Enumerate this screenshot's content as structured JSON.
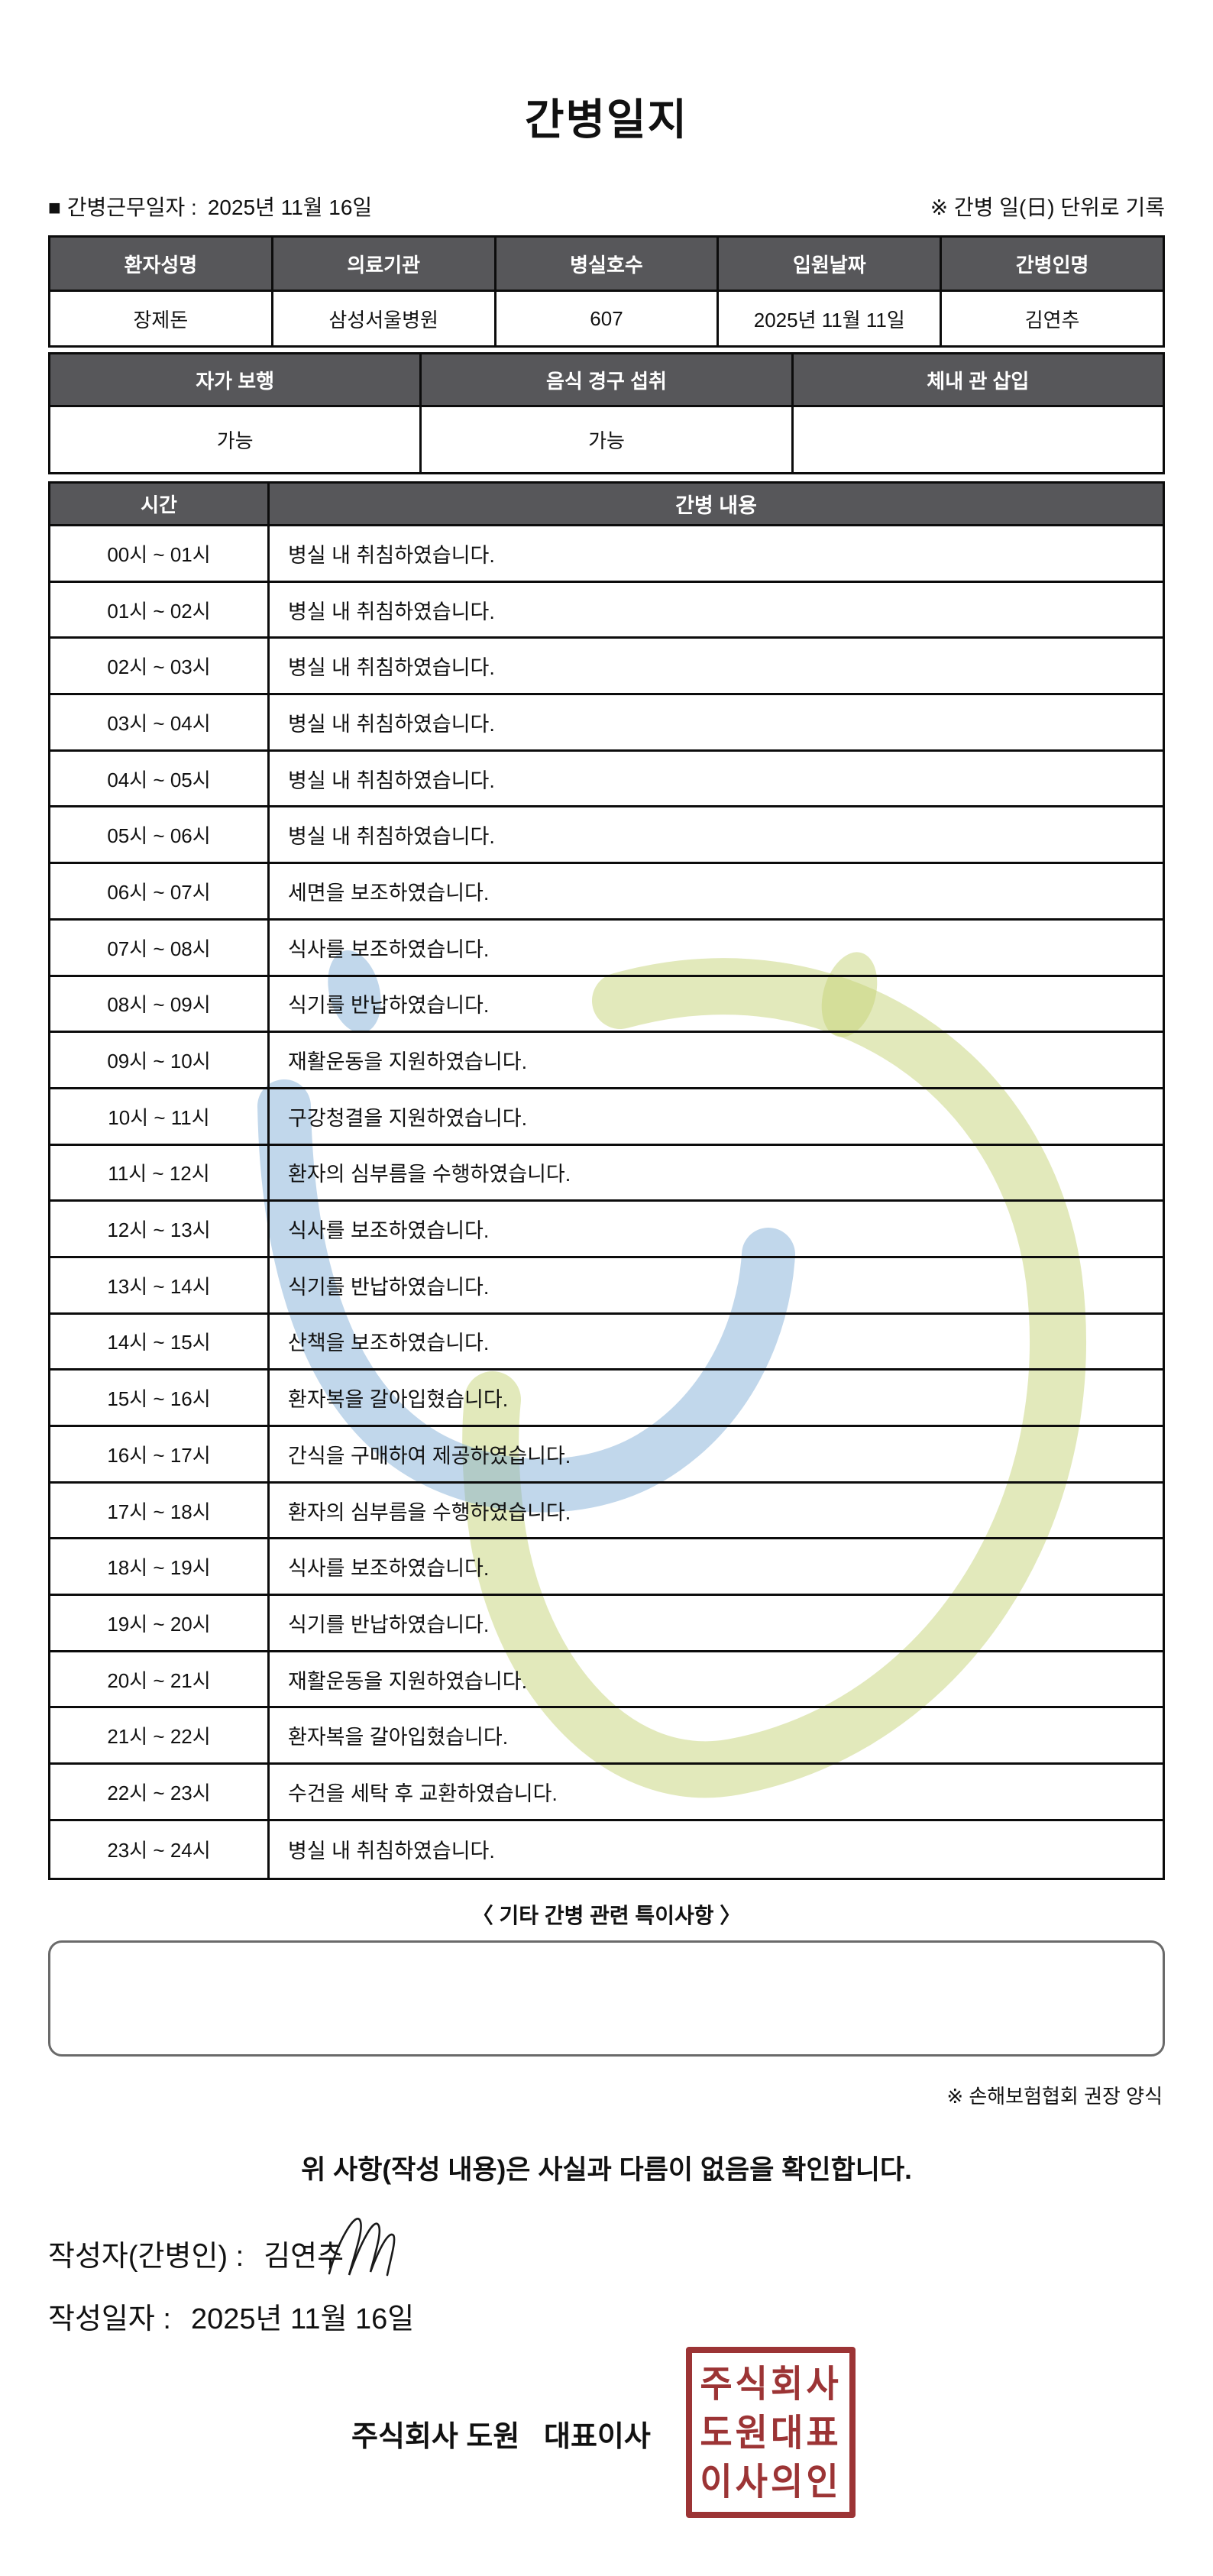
{
  "title": "간병일지",
  "meta": {
    "work_date_label": "■ 간병근무일자 :",
    "work_date": "2025년 11월 16일",
    "unit_note": "※ 간병 일(日) 단위로 기록"
  },
  "patient_table": {
    "headers": [
      "환자성명",
      "의료기관",
      "병실호수",
      "입원날짜",
      "간병인명"
    ],
    "values": [
      "장제돈",
      "삼성서울병원",
      "607",
      "2025년 11월 11일",
      "김연추"
    ]
  },
  "status_table": {
    "headers": [
      "자가 보행",
      "음식 경구 섭취",
      "체내 관 삽입"
    ],
    "values": [
      "가능",
      "가능",
      ""
    ]
  },
  "care_table": {
    "headers": [
      "시간",
      "간병 내용"
    ],
    "rows": [
      {
        "time": "00시 ~ 01시",
        "content": "병실 내 취침하였습니다."
      },
      {
        "time": "01시 ~ 02시",
        "content": "병실 내 취침하였습니다."
      },
      {
        "time": "02시 ~ 03시",
        "content": "병실 내 취침하였습니다."
      },
      {
        "time": "03시 ~ 04시",
        "content": "병실 내 취침하였습니다."
      },
      {
        "time": "04시 ~ 05시",
        "content": "병실 내 취침하였습니다."
      },
      {
        "time": "05시 ~ 06시",
        "content": "병실 내 취침하였습니다."
      },
      {
        "time": "06시 ~ 07시",
        "content": "세면을 보조하였습니다."
      },
      {
        "time": "07시 ~ 08시",
        "content": "식사를 보조하였습니다."
      },
      {
        "time": "08시 ~ 09시",
        "content": "식기를 반납하였습니다."
      },
      {
        "time": "09시 ~ 10시",
        "content": "재활운동을 지원하였습니다."
      },
      {
        "time": "10시 ~ 11시",
        "content": "구강청결을 지원하였습니다."
      },
      {
        "time": "11시 ~ 12시",
        "content": "환자의 심부름을 수행하였습니다."
      },
      {
        "time": "12시 ~ 13시",
        "content": "식사를 보조하였습니다."
      },
      {
        "time": "13시 ~ 14시",
        "content": "식기를 반납하였습니다."
      },
      {
        "time": "14시 ~ 15시",
        "content": "산책을 보조하였습니다."
      },
      {
        "time": "15시 ~ 16시",
        "content": "환자복을 갈아입혔습니다."
      },
      {
        "time": "16시 ~ 17시",
        "content": "간식을 구매하여 제공하였습니다."
      },
      {
        "time": "17시 ~ 18시",
        "content": "환자의 심부름을 수행하였습니다."
      },
      {
        "time": "18시 ~ 19시",
        "content": "식사를 보조하였습니다."
      },
      {
        "time": "19시 ~ 20시",
        "content": "식기를 반납하였습니다."
      },
      {
        "time": "20시 ~ 21시",
        "content": "재활운동을 지원하였습니다."
      },
      {
        "time": "21시 ~ 22시",
        "content": "환자복을 갈아입혔습니다."
      },
      {
        "time": "22시 ~ 23시",
        "content": "수건을 세탁 후 교환하였습니다."
      },
      {
        "time": "23시 ~ 24시",
        "content": "병실 내 취침하였습니다."
      }
    ]
  },
  "extra": {
    "title": "〈 기타 간병 관련 특이사항 〉",
    "content": "",
    "form_note": "※ 손해보험협회 권장 양식"
  },
  "confirmation": "위 사항(작성 내용)은 사실과 다름이 없음을 확인합니다.",
  "signature": {
    "writer_label": "작성자(간병인) :",
    "writer_name": "김연추",
    "date_label": "작성일자 :",
    "date_value": "2025년 11월 16일",
    "company": "주식회사 도원   대표이사",
    "stamp_lines": [
      "주식회사",
      "도원대표",
      "이사의인"
    ]
  },
  "colors": {
    "header_gray": "#57575a",
    "border_black": "#0c0c0c",
    "stamp_red": "#9c3435",
    "watermark_blue": "#7dacd6",
    "watermark_green": "#c5d478"
  }
}
